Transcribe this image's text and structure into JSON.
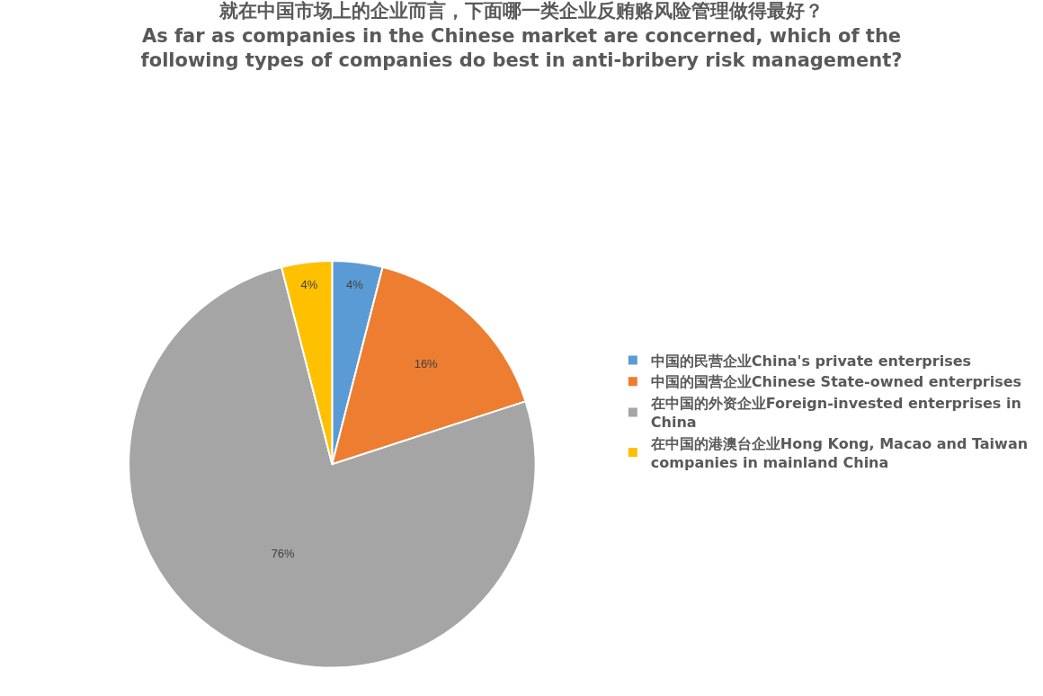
{
  "chart_data": {
    "type": "pie",
    "title": "就在中国市场上的企业而言，下面哪一类企业反贿赂风险管理做得最好？\nAs far as companies in the Chinese market are concerned, which of the following types of companies do best in anti-bribery risk management?",
    "categories": [
      "中国的民营企业China's private enterprises",
      "中国的国营企业Chinese State-owned enterprises",
      "在中国的外资企业Foreign-invested enterprises in China",
      "在中国的港澳台企业Hong Kong, Macao and Taiwan companies in mainland China"
    ],
    "values": [
      4,
      16,
      76,
      4
    ],
    "value_labels": [
      "4%",
      "16%",
      "76%",
      "4%"
    ],
    "colors": [
      "#5b9bd5",
      "#ed7d31",
      "#a5a5a5",
      "#ffc000"
    ],
    "legend": "right"
  }
}
